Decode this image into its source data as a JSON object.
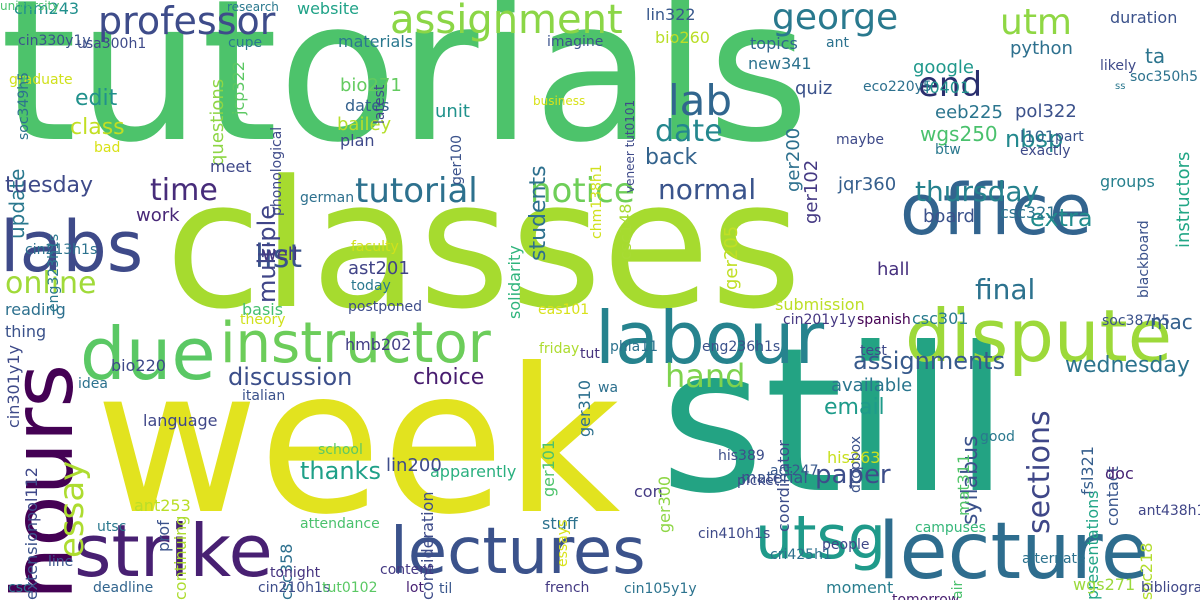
{
  "words": [
    {
      "text": "tutorials",
      "color": "#4dc36b",
      "rot": 0
    },
    {
      "text": "classes",
      "color": "#a6db2f",
      "rot": 0
    },
    {
      "text": "week",
      "color": "#e2e31f",
      "rot": 0
    },
    {
      "text": "still",
      "color": "#23a383",
      "rot": 0
    },
    {
      "text": "strike",
      "color": "#482072",
      "rot": 0
    },
    {
      "text": "lecture",
      "color": "#2e6d8e",
      "rot": 0
    },
    {
      "text": "labour",
      "color": "#26838e",
      "rot": 0
    },
    {
      "text": "dispute",
      "color": "#9dd93a",
      "rot": 0
    },
    {
      "text": "office",
      "color": "#32648e",
      "rot": 0
    },
    {
      "text": "lectures",
      "color": "#3b528b",
      "rot": 0
    },
    {
      "text": "due",
      "color": "#5ac864",
      "rot": 0
    },
    {
      "text": "labs",
      "color": "#3e4a89",
      "rot": 0
    },
    {
      "text": "hours",
      "color": "#440154",
      "rot": 90
    },
    {
      "text": "instructor",
      "color": "#6ccd5a",
      "rot": 0
    },
    {
      "text": "professor",
      "color": "#3e4c8a",
      "rot": 0
    },
    {
      "text": "assignment",
      "color": "#8bd646",
      "rot": 0
    },
    {
      "text": "george",
      "color": "#29798e",
      "rot": 0
    },
    {
      "text": "utsg",
      "color": "#1f9a8a",
      "rot": 0
    },
    {
      "text": "utm",
      "color": "#8fd744",
      "rot": 0
    },
    {
      "text": "end",
      "color": "#2a2f6e",
      "rot": 0
    },
    {
      "text": "lab",
      "color": "#31668e",
      "rot": 0
    },
    {
      "text": "date",
      "color": "#24878e",
      "rot": 0
    },
    {
      "text": "tutorial",
      "color": "#2d718e",
      "rot": 0
    },
    {
      "text": "notice",
      "color": "#6ece58",
      "rot": 0
    },
    {
      "text": "normal",
      "color": "#3a548c",
      "rot": 0
    },
    {
      "text": "thursday",
      "color": "#26828e",
      "rot": 0
    },
    {
      "text": "time",
      "color": "#472c7a",
      "rot": 0
    },
    {
      "text": "hand",
      "color": "#7fd34e",
      "rot": 0
    },
    {
      "text": "final",
      "color": "#2c728e",
      "rot": 0
    },
    {
      "text": "online",
      "color": "#a0da39",
      "rot": 0
    },
    {
      "text": "list",
      "color": "#3a538b",
      "rot": 0
    },
    {
      "text": "essay",
      "color": "#addc30",
      "rot": 90
    },
    {
      "text": "discussion",
      "color": "#3c4f8a",
      "rot": 0
    },
    {
      "text": "choice",
      "color": "#481d6f",
      "rot": 0
    },
    {
      "text": "assignments",
      "color": "#375a8c",
      "rot": 0
    },
    {
      "text": "wednesday",
      "color": "#2c738e",
      "rot": 0
    },
    {
      "text": "syllabus",
      "color": "#3b528b",
      "rot": 90
    },
    {
      "text": "sections",
      "color": "#3f4788",
      "rot": 90
    },
    {
      "text": "email",
      "color": "#1e9b8a",
      "rot": 0
    },
    {
      "text": "paper",
      "color": "#3d4e8a",
      "rot": 0
    },
    {
      "text": "thanks",
      "color": "#1fa088",
      "rot": 0
    },
    {
      "text": "edit",
      "color": "#21918c",
      "rot": 0
    },
    {
      "text": "class",
      "color": "#c2df23",
      "rot": 0
    },
    {
      "text": "update",
      "color": "#2a788e",
      "rot": 90
    },
    {
      "text": "tuesday",
      "color": "#3e4a89",
      "rot": 0
    },
    {
      "text": "multiple",
      "color": "#404588",
      "rot": 90
    },
    {
      "text": "back",
      "color": "#33638d",
      "rot": 0
    },
    {
      "text": "students",
      "color": "#2d708e",
      "rot": 90
    },
    {
      "text": "nbsp",
      "color": "#23898e",
      "rot": 0
    },
    {
      "text": "extra",
      "color": "#228c8d",
      "rot": 0
    },
    {
      "text": "mac",
      "color": "#34618d",
      "rot": 0
    },
    {
      "text": "google",
      "color": "#1f988b",
      "rot": 0
    },
    {
      "text": "ta",
      "color": "#2b748e",
      "rot": 0
    },
    {
      "text": "python",
      "color": "#2d708e",
      "rot": 0
    },
    {
      "text": "instructors",
      "color": "#21a685",
      "rot": 90
    },
    {
      "text": "chm243",
      "color": "#21908d",
      "rot": 0
    },
    {
      "text": "website",
      "color": "#1fa287",
      "rot": 0
    },
    {
      "text": "lin322",
      "color": "#38588c",
      "rot": 0
    },
    {
      "text": "bio260",
      "color": "#bade28",
      "rot": 0
    },
    {
      "text": "topics",
      "color": "#31668e",
      "rot": 0
    },
    {
      "text": "new341",
      "color": "#2c728e",
      "rot": 0
    },
    {
      "text": "l0401",
      "color": "#21918c",
      "rot": 0
    },
    {
      "text": "pol322",
      "color": "#3b518b",
      "rot": 0
    },
    {
      "text": "eeb225",
      "color": "#2b758e",
      "rot": 0
    },
    {
      "text": "wgs250",
      "color": "#4ac16d",
      "rot": 0
    },
    {
      "text": "l101",
      "color": "#33638d",
      "rot": 0
    },
    {
      "text": "ger200",
      "color": "#2d708e",
      "rot": 90
    },
    {
      "text": "ger102",
      "color": "#443983",
      "rot": 90
    },
    {
      "text": "quiz",
      "color": "#3b528b",
      "rot": 0
    },
    {
      "text": "jqr360",
      "color": "#355f8d",
      "rot": 0
    },
    {
      "text": "groups",
      "color": "#27808e",
      "rot": 0
    },
    {
      "text": "board",
      "color": "#3b528b",
      "rot": 0
    },
    {
      "text": "csc321",
      "color": "#2c738e",
      "rot": 0
    },
    {
      "text": "materials",
      "color": "#2a788e",
      "rot": 0
    },
    {
      "text": "bio271",
      "color": "#63cb5f",
      "rot": 0
    },
    {
      "text": "dates",
      "color": "#34618d",
      "rot": 0
    },
    {
      "text": "bailey",
      "color": "#b5de2b",
      "rot": 0
    },
    {
      "text": "plan",
      "color": "#3e4989",
      "rot": 0
    },
    {
      "text": "unit",
      "color": "#20928c",
      "rot": 0
    },
    {
      "text": "questions",
      "color": "#8ed645",
      "rot": 90
    },
    {
      "text": "jcp322",
      "color": "#5cc863",
      "rot": 90
    },
    {
      "text": "meet",
      "color": "#3f4889",
      "rot": 0
    },
    {
      "text": "work",
      "color": "#482878",
      "rot": 0
    },
    {
      "text": "well",
      "color": "#453781",
      "rot": 0
    },
    {
      "text": "ast201",
      "color": "#414487",
      "rot": 0
    },
    {
      "text": "csc148",
      "color": "#a8db34",
      "rot": 90
    },
    {
      "text": "ger205",
      "color": "#c0df25",
      "rot": 90
    },
    {
      "text": "hall",
      "color": "#46307e",
      "rot": 0
    },
    {
      "text": "submission",
      "color": "#bddf26",
      "rot": 0
    },
    {
      "text": "basis",
      "color": "#46c06f",
      "rot": 0
    },
    {
      "text": "reading",
      "color": "#2d708e",
      "rot": 0
    },
    {
      "text": "thing",
      "color": "#3b528b",
      "rot": 0
    },
    {
      "text": "bio220",
      "color": "#3e4989",
      "rot": 0
    },
    {
      "text": "hmb202",
      "color": "#433e85",
      "rot": 0
    },
    {
      "text": "solidarity",
      "color": "#2fb47c",
      "rot": 90
    },
    {
      "text": "csc301",
      "color": "#287c8e",
      "rot": 0
    },
    {
      "text": "available",
      "color": "#2a768e",
      "rot": 0
    },
    {
      "text": "mat311",
      "color": "#52c569",
      "rot": 90
    },
    {
      "text": "contact",
      "color": "#39568c",
      "rot": 90
    },
    {
      "text": "fsl321",
      "color": "#355e8d",
      "rot": 90
    },
    {
      "text": "doc",
      "color": "#482475",
      "rot": 0
    },
    {
      "text": "presentations",
      "color": "#20a486",
      "rot": 90
    },
    {
      "text": "soc218",
      "color": "#b2dd2d",
      "rot": 90
    },
    {
      "text": "coordinator",
      "color": "#3d4d8a",
      "rot": 90
    },
    {
      "text": "wgs271",
      "color": "#9bd93c",
      "rot": 0
    },
    {
      "text": "his263",
      "color": "#c8e020",
      "rot": 0
    },
    {
      "text": "moment",
      "color": "#287d8e",
      "rot": 0
    },
    {
      "text": "material",
      "color": "#3a548c",
      "rot": 0
    },
    {
      "text": "con",
      "color": "#443a83",
      "rot": 0
    },
    {
      "text": "stuff",
      "color": "#2c728e",
      "rot": 0
    },
    {
      "text": "apparently",
      "color": "#2ab07f",
      "rot": 0
    },
    {
      "text": "language",
      "color": "#3f4788",
      "rot": 0
    },
    {
      "text": "lin200",
      "color": "#3e4c8a",
      "rot": 0
    },
    {
      "text": "ger310",
      "color": "#2d708e",
      "rot": 90
    },
    {
      "text": "ger300",
      "color": "#8ed645",
      "rot": 90
    },
    {
      "text": "ger101",
      "color": "#4ec36b",
      "rot": 90
    },
    {
      "text": "essays",
      "color": "#d8e219",
      "rot": 90
    },
    {
      "text": "consideration",
      "color": "#3e4c8a",
      "rot": 90
    },
    {
      "text": "ant253",
      "color": "#bade28",
      "rot": 0
    },
    {
      "text": "pol112",
      "color": "#3f4889",
      "rot": 90
    },
    {
      "text": "extension",
      "color": "#3b528b",
      "rot": 90
    },
    {
      "text": "csc358",
      "color": "#2d708e",
      "rot": 90
    },
    {
      "text": "prof",
      "color": "#3b528b",
      "rot": 90
    },
    {
      "text": "tonight",
      "color": "#46337f",
      "rot": 0
    },
    {
      "text": "attendance",
      "color": "#4ac16d",
      "rot": 0
    },
    {
      "text": "continuing",
      "color": "#addc30",
      "rot": 90
    },
    {
      "text": "deadline",
      "color": "#32658e",
      "rot": 0
    },
    {
      "text": "utsc",
      "color": "#2a788e",
      "rot": 0
    },
    {
      "text": "line",
      "color": "#3a538b",
      "rot": 0
    },
    {
      "text": "csc",
      "color": "#2c728e",
      "rot": 0
    },
    {
      "text": "cin210h1s",
      "color": "#3d4d8a",
      "rot": 0
    },
    {
      "text": "tut0102",
      "color": "#5ac864",
      "rot": 0
    },
    {
      "text": "content",
      "color": "#443983",
      "rot": 0
    },
    {
      "text": "lot",
      "color": "#482173",
      "rot": 0
    },
    {
      "text": "til",
      "color": "#39568c",
      "rot": 0
    },
    {
      "text": "french",
      "color": "#443a83",
      "rot": 0
    },
    {
      "text": "cin105y1y",
      "color": "#2c738e",
      "rot": 0
    },
    {
      "text": "cin410h1s",
      "color": "#3e4a89",
      "rot": 0
    },
    {
      "text": "cri425h1",
      "color": "#2d708e",
      "rot": 0
    },
    {
      "text": "people",
      "color": "#3f4788",
      "rot": 0
    },
    {
      "text": "campuses",
      "color": "#35b779",
      "rot": 0
    },
    {
      "text": "alternate",
      "color": "#2c728e",
      "rot": 0
    },
    {
      "text": "tomorrow",
      "color": "#481f70",
      "rot": 0
    },
    {
      "text": "air",
      "color": "#4ac16d",
      "rot": 90
    },
    {
      "text": "bibliography",
      "color": "#3f4788",
      "rot": 0
    },
    {
      "text": "act247",
      "color": "#38588c",
      "rot": 0
    },
    {
      "text": "picket",
      "color": "#3e4989",
      "rot": 0
    },
    {
      "text": "his389",
      "color": "#3d4e8a",
      "rot": 0
    },
    {
      "text": "ant438h1",
      "color": "#404688",
      "rot": 0
    },
    {
      "text": "dropbox",
      "color": "#3b528b",
      "rot": 90
    },
    {
      "text": "good",
      "color": "#2a788e",
      "rot": 0
    },
    {
      "text": "test",
      "color": "#3e4a89",
      "rot": 0
    },
    {
      "text": "tut",
      "color": "#46327e",
      "rot": 0
    },
    {
      "text": "wa",
      "color": "#2d708e",
      "rot": 0
    },
    {
      "text": "school",
      "color": "#5ec962",
      "rot": 0
    },
    {
      "text": "idea",
      "color": "#2c728e",
      "rot": 0
    },
    {
      "text": "italian",
      "color": "#3b528b",
      "rot": 0
    },
    {
      "text": "cin301y1y",
      "color": "#3e4a89",
      "rot": 90
    },
    {
      "text": "phla11",
      "color": "#2c728e",
      "rot": 0
    },
    {
      "text": "eng236h1s",
      "color": "#3b528b",
      "rot": 0
    },
    {
      "text": "cin201y1y",
      "color": "#453781",
      "rot": 0
    },
    {
      "text": "spanish",
      "color": "#440154",
      "rot": 0
    },
    {
      "text": "friday",
      "color": "#addc30",
      "rot": 0
    },
    {
      "text": "theory",
      "color": "#d0e11c",
      "rot": 0
    },
    {
      "text": "postponed",
      "color": "#3e4c8a",
      "rot": 0
    },
    {
      "text": "today",
      "color": "#2a788e",
      "rot": 0
    },
    {
      "text": "faculty",
      "color": "#d0e11c",
      "rot": 0
    },
    {
      "text": "eas101",
      "color": "#d8e219",
      "rot": 0
    },
    {
      "text": "soc387h5",
      "color": "#3b528b",
      "rot": 0
    },
    {
      "text": "actual",
      "color": "#2a788e",
      "rot": 0
    },
    {
      "text": "blackboard",
      "color": "#3b528b",
      "rot": 90
    },
    {
      "text": "cin213h1s",
      "color": "#2c728e",
      "rot": 0
    },
    {
      "text": "eng323h1s",
      "color": "#2a788e",
      "rot": 90
    },
    {
      "text": "german",
      "color": "#2d708e",
      "rot": 0
    },
    {
      "text": "phonological",
      "color": "#3e4a89",
      "rot": 90
    },
    {
      "text": "latest",
      "color": "#3e4a89",
      "rot": 90
    },
    {
      "text": "bad",
      "color": "#d8e219",
      "rot": 0
    },
    {
      "text": "graduate",
      "color": "#d0e11c",
      "rot": 0
    },
    {
      "text": "soc349h5",
      "color": "#2c728e",
      "rot": 90
    },
    {
      "text": "usa300h1",
      "color": "#3e4a89",
      "rot": 0
    },
    {
      "text": "cin330y1y",
      "color": "#3b528b",
      "rot": 0
    },
    {
      "text": "cupe",
      "color": "#2a788e",
      "rot": 0
    },
    {
      "text": "imagine",
      "color": "#3b528b",
      "rot": 0
    },
    {
      "text": "research",
      "color": "#2a788e",
      "rot": 0
    },
    {
      "text": "business",
      "color": "#d8e219",
      "rot": 0
    },
    {
      "text": "veneer tut0101",
      "color": "#3e4a89",
      "rot": 90
    },
    {
      "text": "chm138h1",
      "color": "#d0e11c",
      "rot": 90
    },
    {
      "text": "ger100",
      "color": "#3b528b",
      "rot": 90
    },
    {
      "text": "ant",
      "color": "#2c728e",
      "rot": 0
    },
    {
      "text": "eco220y5",
      "color": "#2d708e",
      "rot": 0
    },
    {
      "text": "maybe",
      "color": "#3e4a89",
      "rot": 0
    },
    {
      "text": "btw",
      "color": "#2a788e",
      "rot": 0
    },
    {
      "text": "part",
      "color": "#3b528b",
      "rot": 0
    },
    {
      "text": "exactly",
      "color": "#3e4a89",
      "rot": 0
    },
    {
      "text": "duration",
      "color": "#3b528b",
      "rot": 0
    },
    {
      "text": "likely",
      "color": "#3e4a89",
      "rot": 0
    },
    {
      "text": "soc350h5",
      "color": "#2c728e",
      "rot": 0
    },
    {
      "text": "ss",
      "color": "#2a788e",
      "rot": 0
    },
    {
      "text": "university",
      "color": "#4ac16d",
      "rot": 0
    }
  ]
}
